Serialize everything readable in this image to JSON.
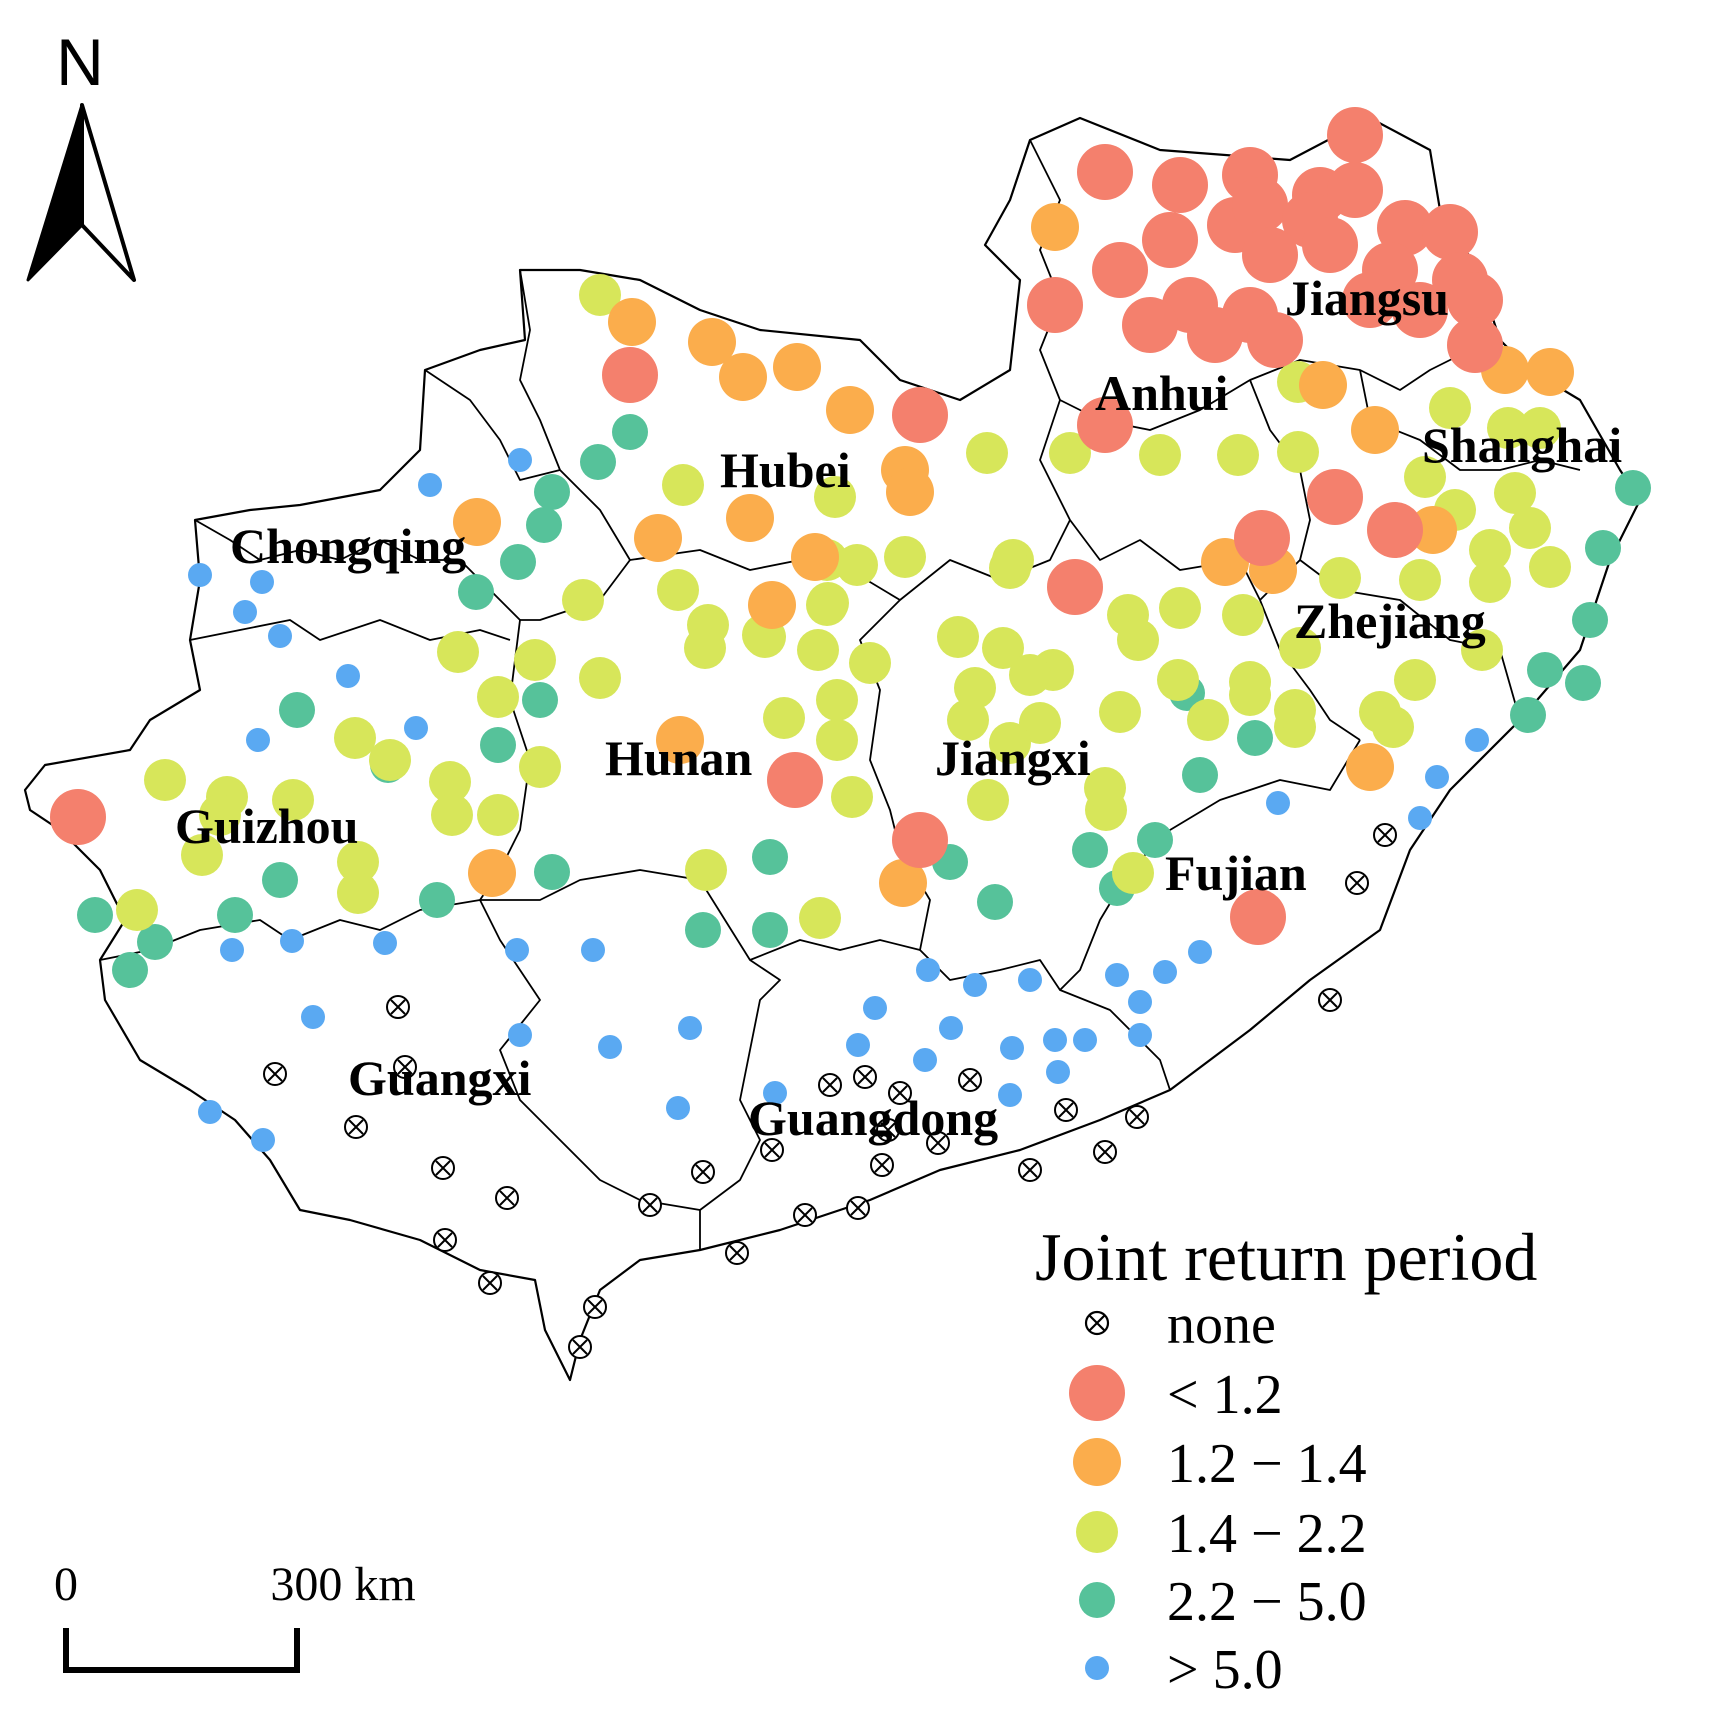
{
  "north_arrow": {
    "label": "N"
  },
  "scale_bar": {
    "start_label": "0",
    "end_label": "300 km"
  },
  "legend": {
    "title": "Joint return period",
    "items": [
      {
        "key": "none",
        "label": "none",
        "color": "#000000"
      },
      {
        "key": "lt12",
        "label": "< 1.2",
        "color": "#F4806D"
      },
      {
        "key": "c1214",
        "label": "1.2 − 1.4",
        "color": "#FBAD4C"
      },
      {
        "key": "c1422",
        "label": "1.4 − 2.2",
        "color": "#D7E65A"
      },
      {
        "key": "c2250",
        "label": "2.2 − 5.0",
        "color": "#56C29A"
      },
      {
        "key": "gt50",
        "label": "> 5.0",
        "color": "#5AA9F2"
      }
    ]
  },
  "provinces": {
    "jiangsu": "Jiangsu",
    "anhui": "Anhui",
    "shanghai": "Shanghai",
    "hubei": "Hubei",
    "chongqing": "Chongqing",
    "zhejiang": "Zhejiang",
    "hunan": "Hunan",
    "jiangxi": "Jiangxi",
    "guizhou": "Guizhou",
    "fujian": "Fujian",
    "guangxi": "Guangxi",
    "guangdong": "Guangdong"
  }
}
